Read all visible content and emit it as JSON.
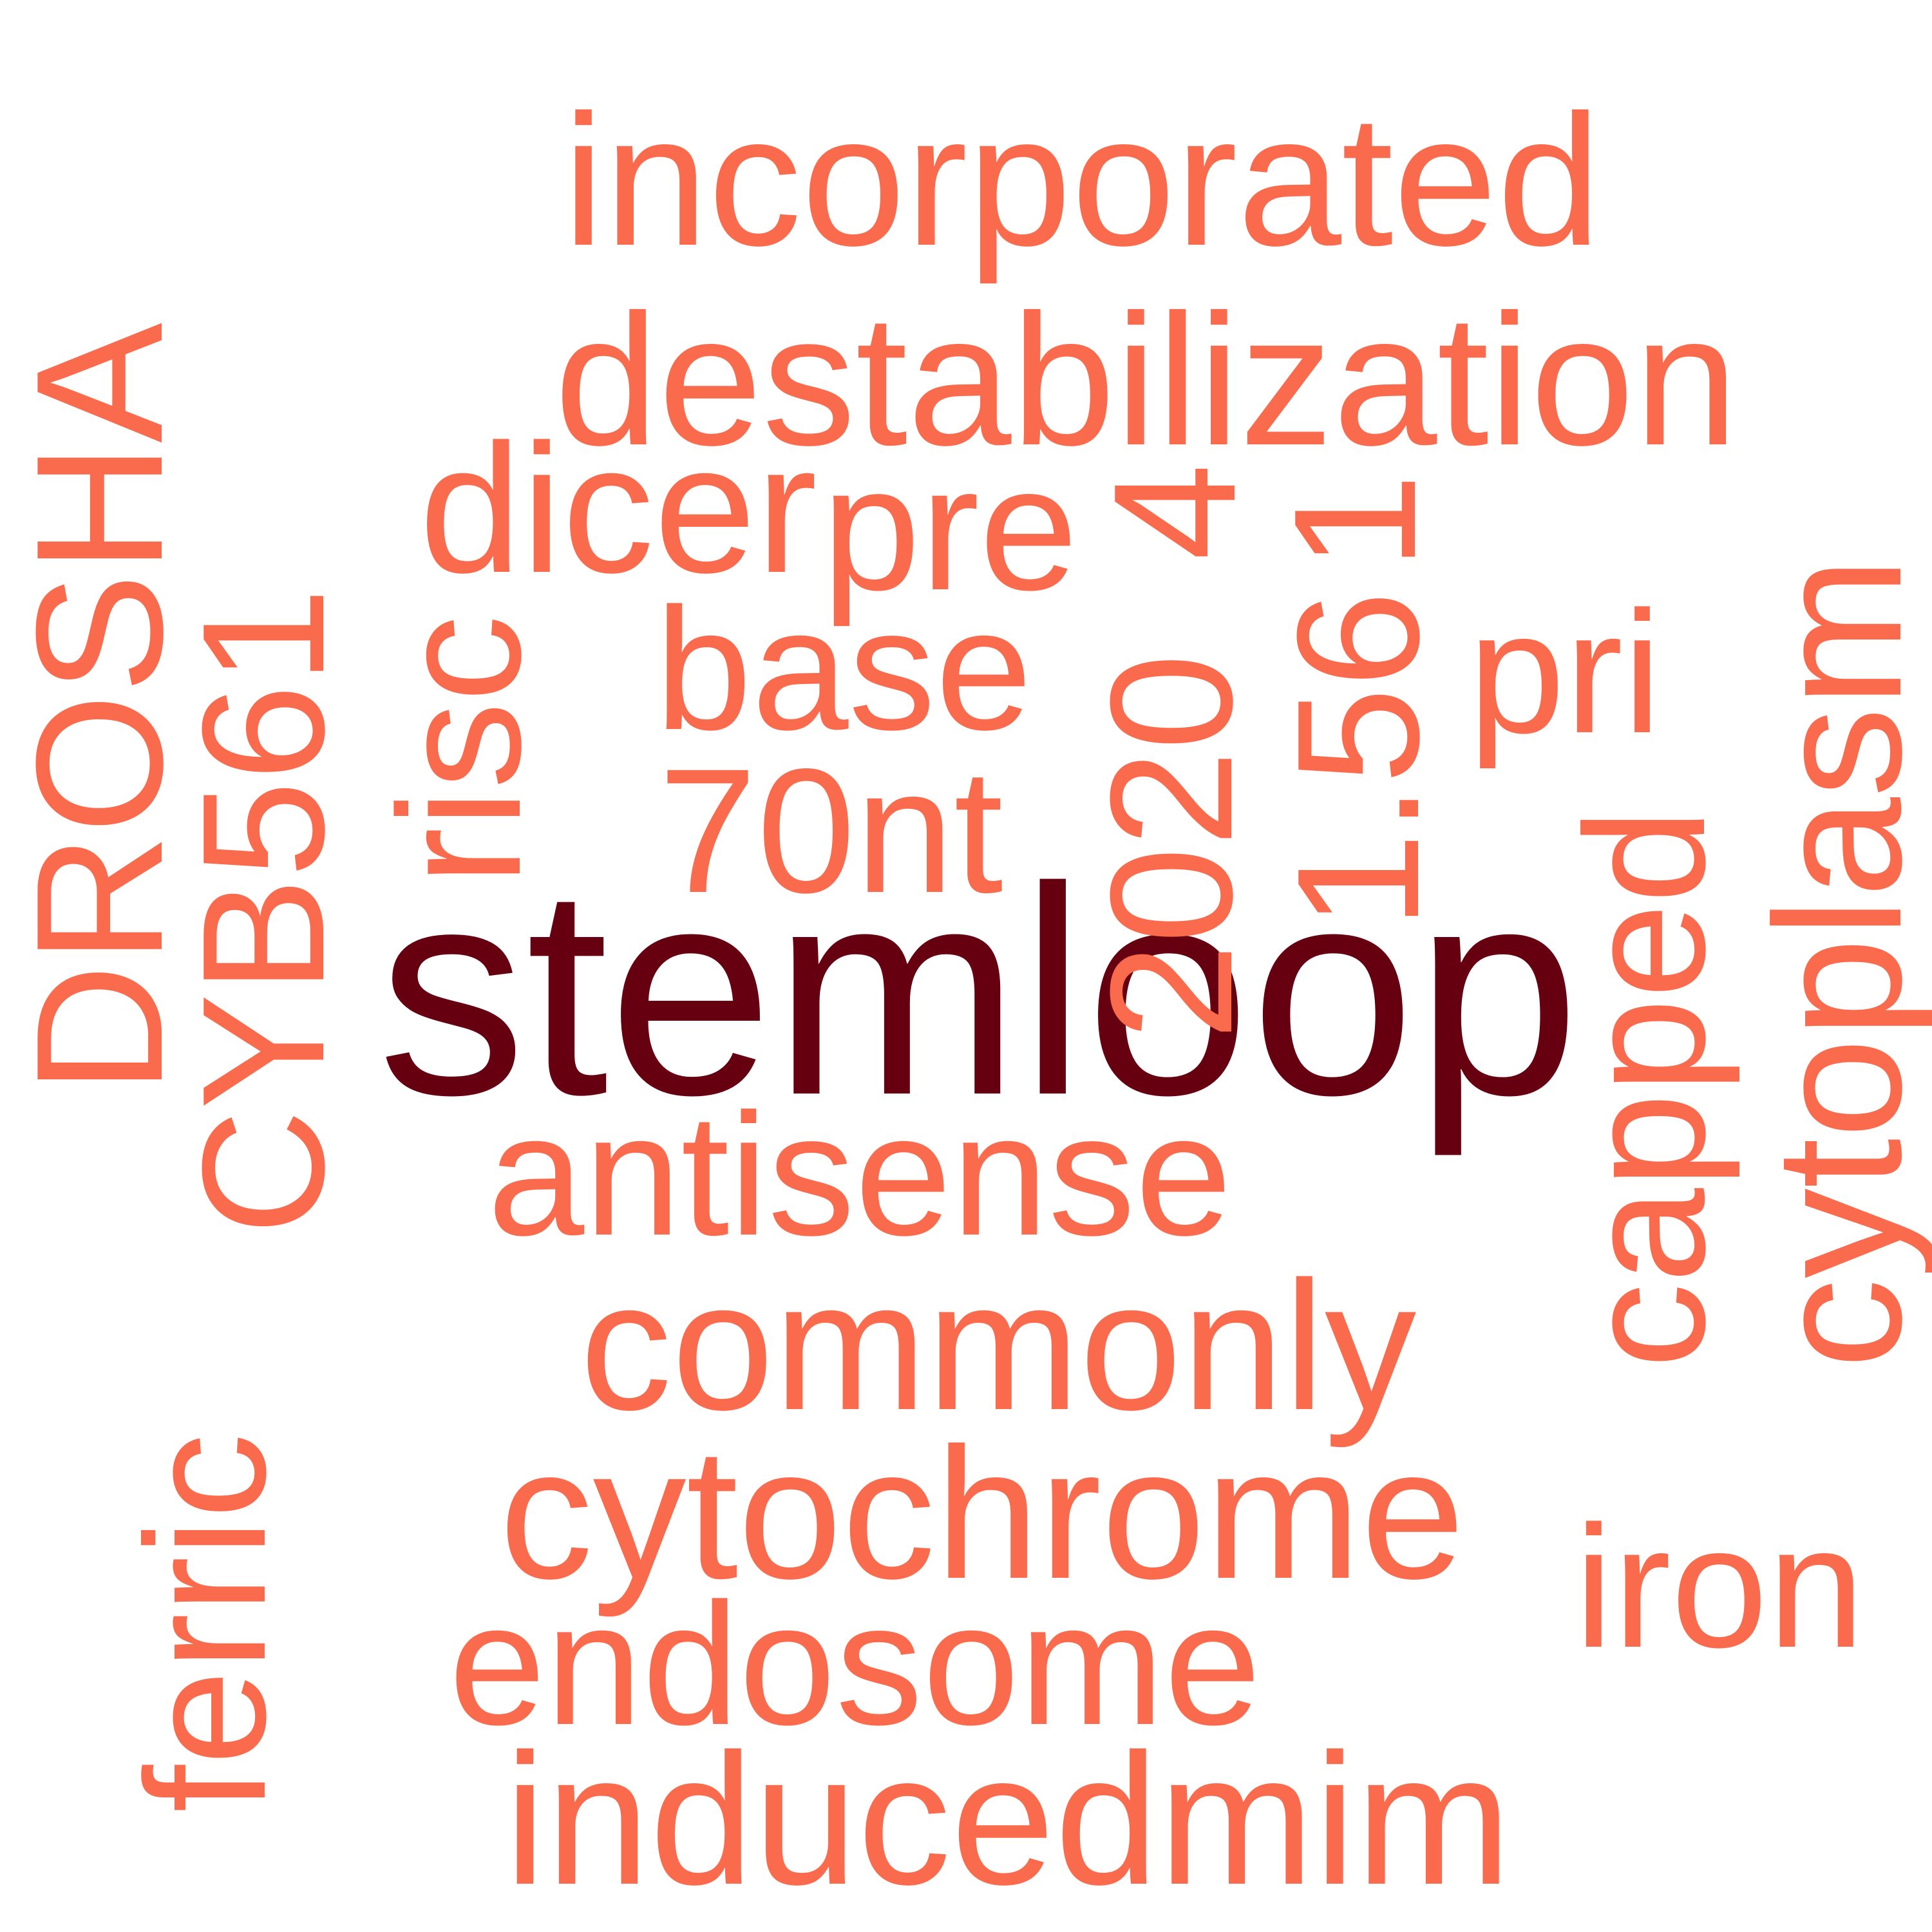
{
  "colors": {
    "primary": "#FA6B4D",
    "emphasis": "#660010"
  },
  "words": [
    {
      "text": "stemloop",
      "emphasis": true,
      "vertical": false
    },
    {
      "text": "incorporated",
      "emphasis": false,
      "vertical": false
    },
    {
      "text": "destabilization",
      "emphasis": false,
      "vertical": false
    },
    {
      "text": "dicer",
      "emphasis": false,
      "vertical": false
    },
    {
      "text": "pre",
      "emphasis": false,
      "vertical": false
    },
    {
      "text": "base",
      "emphasis": false,
      "vertical": false
    },
    {
      "text": "pri",
      "emphasis": false,
      "vertical": false
    },
    {
      "text": "70nt",
      "emphasis": false,
      "vertical": false
    },
    {
      "text": "antisense",
      "emphasis": false,
      "vertical": false
    },
    {
      "text": "commonly",
      "emphasis": false,
      "vertical": false
    },
    {
      "text": "cytochrome",
      "emphasis": false,
      "vertical": false
    },
    {
      "text": "iron",
      "emphasis": false,
      "vertical": false
    },
    {
      "text": "endosome",
      "emphasis": false,
      "vertical": false
    },
    {
      "text": "inducedmim",
      "emphasis": false,
      "vertical": false
    },
    {
      "text": "DROSHA",
      "emphasis": false,
      "vertical": true
    },
    {
      "text": "CYB561",
      "emphasis": false,
      "vertical": true
    },
    {
      "text": "risc",
      "emphasis": false,
      "vertical": true
    },
    {
      "text": "4",
      "emphasis": false,
      "vertical": true
    },
    {
      "text": "1",
      "emphasis": false,
      "vertical": true
    },
    {
      "text": "2020",
      "emphasis": false,
      "vertical": true
    },
    {
      "text": "1.56",
      "emphasis": false,
      "vertical": true
    },
    {
      "text": "capped",
      "emphasis": false,
      "vertical": true
    },
    {
      "text": "cytoplasm",
      "emphasis": false,
      "vertical": true
    },
    {
      "text": "ferric",
      "emphasis": false,
      "vertical": true
    }
  ]
}
